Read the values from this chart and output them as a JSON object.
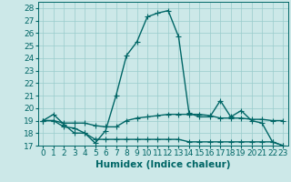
{
  "title": "",
  "xlabel": "Humidex (Indice chaleur)",
  "xlim": [
    -0.5,
    23.5
  ],
  "ylim": [
    17,
    28.5
  ],
  "yticks": [
    17,
    18,
    19,
    20,
    21,
    22,
    23,
    24,
    25,
    26,
    27,
    28
  ],
  "xticks": [
    0,
    1,
    2,
    3,
    4,
    5,
    6,
    7,
    8,
    9,
    10,
    11,
    12,
    13,
    14,
    15,
    16,
    17,
    18,
    19,
    20,
    21,
    22,
    23
  ],
  "background_color": "#cce8e8",
  "line_color": "#006666",
  "grid_color": "#99cccc",
  "series": [
    {
      "x": [
        0,
        1,
        2,
        3,
        4,
        5,
        6,
        7,
        8,
        9,
        10,
        11,
        12,
        13,
        14,
        15,
        16,
        17,
        18,
        19,
        20,
        21,
        22,
        23
      ],
      "y": [
        19.0,
        19.5,
        18.7,
        18.0,
        18.0,
        17.2,
        18.2,
        21.0,
        24.2,
        25.3,
        27.3,
        27.6,
        27.8,
        25.7,
        19.6,
        19.3,
        19.3,
        20.6,
        19.3,
        19.8,
        19.0,
        18.8,
        17.3,
        17.0
      ]
    },
    {
      "x": [
        0,
        1,
        2,
        3,
        4,
        5,
        6,
        7,
        8,
        9,
        10,
        11,
        12,
        13,
        14,
        15,
        16,
        17,
        18,
        19,
        20,
        21,
        22,
        23
      ],
      "y": [
        19.0,
        19.0,
        18.8,
        18.8,
        18.8,
        18.6,
        18.5,
        18.5,
        19.0,
        19.2,
        19.3,
        19.4,
        19.5,
        19.5,
        19.5,
        19.5,
        19.4,
        19.2,
        19.2,
        19.2,
        19.1,
        19.1,
        19.0,
        19.0
      ]
    },
    {
      "x": [
        0,
        1,
        2,
        3,
        4,
        5,
        6,
        7,
        8,
        9,
        10,
        11,
        12,
        13,
        14,
        15,
        16,
        17,
        18,
        19,
        20,
        21,
        22,
        23
      ],
      "y": [
        19.0,
        19.0,
        18.5,
        18.4,
        18.0,
        17.5,
        17.5,
        17.5,
        17.5,
        17.5,
        17.5,
        17.5,
        17.5,
        17.5,
        17.3,
        17.3,
        17.3,
        17.3,
        17.3,
        17.3,
        17.3,
        17.3,
        17.3,
        17.0
      ]
    }
  ],
  "marker": "+",
  "markersize": 4,
  "linewidth": 1.0,
  "tick_fontsize": 6.5,
  "xlabel_fontsize": 7.5
}
